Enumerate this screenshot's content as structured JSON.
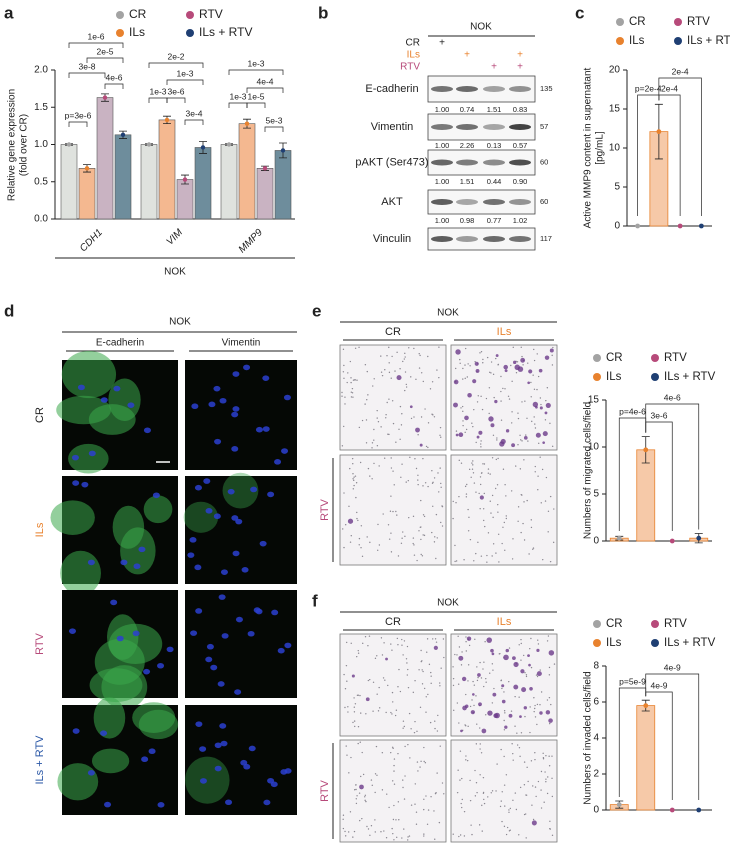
{
  "panel_labels": [
    "a",
    "b",
    "c",
    "d",
    "e",
    "f"
  ],
  "chart_data": [
    {
      "type": "grouped_bar",
      "ylabel": [
        "Relative gene expression",
        "(fold over CR)"
      ],
      "xlabel": "NOK",
      "categories": [
        "CDH1",
        "VIM",
        "MMP9"
      ],
      "series": [
        {
          "name": "CR",
          "color": "#dfe2de",
          "marker_color": "#a3a3a3",
          "values": [
            1.0,
            1.0,
            1.0
          ],
          "errors": [
            0.01,
            0.01,
            0.01
          ]
        },
        {
          "name": "ILs",
          "color": "#f4b890",
          "marker_color": "#e8822e",
          "values": [
            0.68,
            1.33,
            1.28
          ],
          "errors": [
            0.05,
            0.05,
            0.06
          ]
        },
        {
          "name": "RTV",
          "color": "#c9b3c2",
          "marker_color": "#b74a7a",
          "values": [
            1.63,
            0.53,
            0.68
          ],
          "errors": [
            0.05,
            0.06,
            0.03
          ]
        },
        {
          "name": "ILs + RTV",
          "color": "#6e8d9c",
          "marker_color": "#1f3f73",
          "values": [
            1.13,
            0.96,
            0.92
          ],
          "errors": [
            0.05,
            0.08,
            0.1
          ]
        }
      ],
      "ylim": [
        0,
        2
      ],
      "yticks": [
        {
          "value": 0,
          "label": "0.0"
        },
        0.5,
        {
          "value": 1,
          "label": "1.0"
        },
        1.5,
        {
          "value": 2,
          "label": "2.0"
        }
      ],
      "annotations": [
        "1e-6",
        "2e-5",
        "3e-8",
        "4e-6",
        "p=3e-6",
        "2e-2",
        "1e-3",
        "3e-6",
        "1e-3",
        "3e-4",
        "1e-3",
        "1e-3",
        "4e-4",
        "1e-5",
        "5e-3"
      ]
    },
    {
      "type": "bar",
      "ylabel": [
        "Active MMP9 content in supernatant",
        "[pg/mL]"
      ],
      "categories": [
        "CR",
        "ILs",
        "RTV",
        "ILs + RTV"
      ],
      "colors": [
        "#a3a3a3",
        "#e8822e",
        "#b74a7a",
        "#1f3f73"
      ],
      "bar_color": "#f6c9a8",
      "edge_color": "#e8822e",
      "values": [
        0,
        12.1,
        0,
        0
      ],
      "errors": [
        0,
        3.5,
        0,
        0
      ],
      "ylim": [
        0,
        20
      ],
      "yticks": [
        0,
        5,
        10,
        15,
        20
      ],
      "annotations": [
        "p=2e-4",
        "2e-4",
        "2e-4"
      ]
    },
    {
      "type": "bar",
      "ylabel": [
        "Numbers of migrated cells/field"
      ],
      "categories": [
        "CR",
        "ILs",
        "RTV",
        "ILs + RTV"
      ],
      "colors": [
        "#a3a3a3",
        "#e8822e",
        "#b74a7a",
        "#1f3f73"
      ],
      "bar_color": "#f6c9a8",
      "edge_color": "#e8822e",
      "values": [
        0.3,
        9.7,
        0,
        0.3
      ],
      "errors": [
        0.2,
        1.4,
        0,
        0.5
      ],
      "ylim": [
        0,
        15
      ],
      "yticks": [
        0,
        5,
        10,
        15
      ],
      "annotations": [
        "p=4e-6",
        "3e-6",
        "4e-6"
      ]
    },
    {
      "type": "bar",
      "ylabel": [
        "Numbers of invaded cells/field"
      ],
      "categories": [
        "CR",
        "ILs",
        "RTV",
        "ILs + RTV"
      ],
      "colors": [
        "#a3a3a3",
        "#e8822e",
        "#b74a7a",
        "#1f3f73"
      ],
      "bar_color": "#f6c9a8",
      "edge_color": "#e8822e",
      "values": [
        0.3,
        5.8,
        0,
        0
      ],
      "errors": [
        0.2,
        0.3,
        0,
        0
      ],
      "ylim": [
        0,
        8
      ],
      "yticks": [
        0,
        2,
        4,
        6,
        8
      ],
      "annotations": [
        "p=5e-9",
        "4e-9",
        "4e-9"
      ]
    }
  ],
  "blot": {
    "header": "NOK",
    "treatments": [
      {
        "label": "CR",
        "color": "#222222",
        "signs": [
          "+",
          null,
          null,
          null
        ]
      },
      {
        "label": "ILs",
        "color": "#e8822e",
        "signs": [
          null,
          "+",
          null,
          "+"
        ]
      },
      {
        "label": "RTV",
        "color": "#b74a7a",
        "signs": [
          null,
          null,
          "+",
          "+"
        ]
      }
    ],
    "rows": [
      {
        "protein": "E-cadherin",
        "mw": "135",
        "quant": [
          "1.00",
          "0.74",
          "1.51",
          "0.83"
        ]
      },
      {
        "protein": "Vimentin",
        "mw": "57",
        "quant": [
          "1.00",
          "2.26",
          "0.13",
          "0.57"
        ]
      },
      {
        "protein": "pAKT (Ser473)",
        "mw": "60",
        "quant": [
          "1.00",
          "1.51",
          "0.44",
          "0.90"
        ]
      },
      {
        "protein": "AKT",
        "mw": "60",
        "quant": [
          "1.00",
          "0.98",
          "0.77",
          "1.02"
        ]
      },
      {
        "protein": "Vinculin",
        "mw": "117",
        "quant": null
      }
    ]
  },
  "microscopy": {
    "header": "NOK",
    "columns": [
      "E-cadherin",
      "Vimentin"
    ],
    "rows": [
      "CR",
      "ILs",
      "RTV",
      "ILs + RTV"
    ],
    "row_colors": [
      "#222222",
      "#e8822e",
      "#b74a7a",
      "#2a57a6"
    ]
  },
  "transwell": [
    {
      "header": "NOK",
      "columns": [
        "CR",
        "ILs"
      ],
      "column_colors": [
        "#222222",
        "#e8822e"
      ],
      "row": "RTV",
      "row_color": "#b74a7a"
    },
    {
      "header": "NOK",
      "columns": [
        "CR",
        "ILs"
      ],
      "column_colors": [
        "#222222",
        "#e8822e"
      ],
      "row": "RTV",
      "row_color": "#b74a7a"
    }
  ]
}
